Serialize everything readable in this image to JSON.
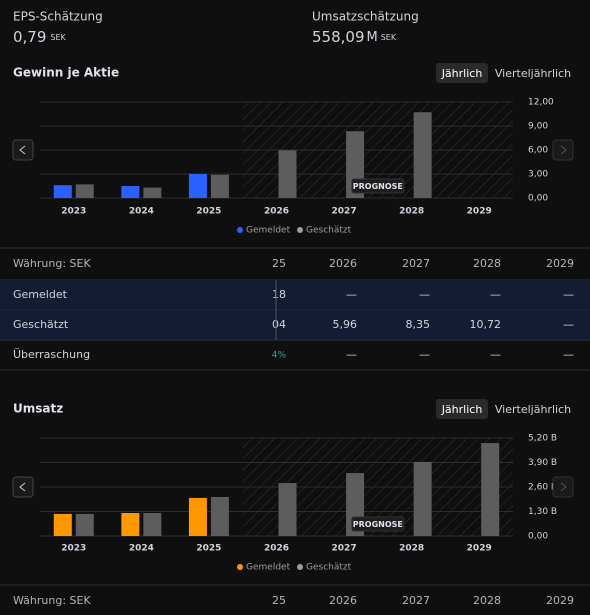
{
  "header": {
    "eps_label": "EPS-Schätzung",
    "eps_value": "0,79",
    "eps_unit": "SEK",
    "rev_label": "Umsatzschätzung",
    "rev_value": "558,09",
    "rev_suffix": "M",
    "rev_unit": "SEK"
  },
  "chart_data": [
    {
      "type": "bar",
      "title": "Gewinn je Aktie",
      "tabs": [
        "Jährlich",
        "Vierteljährlich"
      ],
      "categories": [
        "2023",
        "2024",
        "2025",
        "2026",
        "2027",
        "2028",
        "2029"
      ],
      "series": [
        {
          "name": "Gemeldet",
          "color": "#2962ff",
          "values": [
            1.6,
            1.5,
            3.0,
            null,
            null,
            null,
            null
          ]
        },
        {
          "name": "Geschätzt",
          "color": "#5d5d5d",
          "values": [
            1.7,
            1.3,
            2.9,
            5.96,
            8.35,
            10.72,
            null
          ]
        }
      ],
      "ylim": [
        0,
        12
      ],
      "yticks": [
        {
          "value": 0,
          "label": "0,00"
        },
        {
          "value": 3,
          "label": "3,00"
        },
        {
          "value": 6,
          "label": "6,00"
        },
        {
          "value": 9,
          "label": "9,00"
        },
        {
          "value": 12,
          "label": "12,00"
        }
      ],
      "annotation": "PROGNOSE",
      "grid": true
    },
    {
      "type": "bar",
      "title": "Umsatz",
      "tabs": [
        "Jährlich",
        "Vierteljährlich"
      ],
      "categories": [
        "2023",
        "2024",
        "2025",
        "2026",
        "2027",
        "2028",
        "2029"
      ],
      "series": [
        {
          "name": "Gemeldet",
          "color": "#ff9800",
          "values": [
            1.17,
            1.22,
            2.02,
            null,
            null,
            null,
            null
          ]
        },
        {
          "name": "Geschätzt",
          "color": "#5d5d5d",
          "values": [
            1.17,
            1.22,
            2.07,
            2.81,
            3.34,
            3.93,
            4.93
          ]
        }
      ],
      "ylim": [
        0,
        5.2
      ],
      "yticks": [
        {
          "value": 0,
          "label": "0,00"
        },
        {
          "value": 1.3,
          "label": "1,30 B"
        },
        {
          "value": 2.6,
          "label": "2,60 B"
        },
        {
          "value": 3.9,
          "label": "3,90 B"
        },
        {
          "value": 5.2,
          "label": "5,20 B"
        }
      ],
      "annotation": "PROGNOSE",
      "grid": true
    }
  ],
  "eps_table": {
    "header": [
      "Währung: SEK",
      "25",
      "2026",
      "2027",
      "2028",
      "2029"
    ],
    "rows": [
      [
        "Gemeldet",
        "18",
        "—",
        "—",
        "—",
        "—"
      ],
      [
        "Geschätzt",
        "04",
        "5,96",
        "8,35",
        "10,72",
        "—"
      ],
      [
        "Überraschung",
        "4%",
        "—",
        "—",
        "—",
        "—"
      ]
    ]
  },
  "rev_table": {
    "header": [
      "Währung: SEK",
      "25",
      "2026",
      "2027",
      "2028",
      "2029"
    ]
  }
}
